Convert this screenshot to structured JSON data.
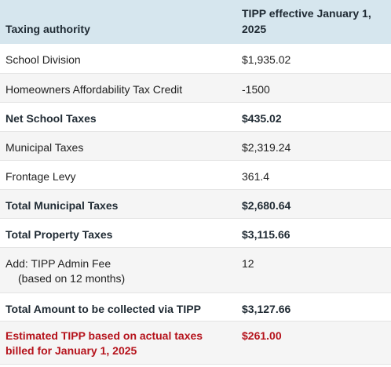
{
  "table": {
    "headers": [
      "Taxing authority",
      "TIPP effective January 1, 2025"
    ],
    "rows": [
      {
        "label": "School Division",
        "value": "$1,935.02"
      },
      {
        "label": "Homeowners Affordability Tax Credit",
        "value": "-1500"
      },
      {
        "label": "Net School Taxes",
        "value": "$435.02"
      },
      {
        "label": "Municipal Taxes",
        "value": "$2,319.24"
      },
      {
        "label": "Frontage Levy",
        "value": "361.4"
      },
      {
        "label": "Total Municipal Taxes",
        "value": "$2,680.64"
      },
      {
        "label": "Total Property Taxes",
        "value": "$3,115.66"
      },
      {
        "label": "Add: TIPP Admin Fee",
        "sublabel": "(based on 12 months)",
        "value": "12"
      },
      {
        "label": "Total Amount to be collected via TIPP",
        "value": "$3,127.66"
      },
      {
        "label": "Estimated TIPP based on actual taxes billed for January 1, 2025",
        "value": "$261.00"
      }
    ]
  },
  "colors": {
    "header_bg": "#d6e6ee",
    "stripe_bg": "#f5f5f5",
    "highlight_text": "#b5121b"
  }
}
